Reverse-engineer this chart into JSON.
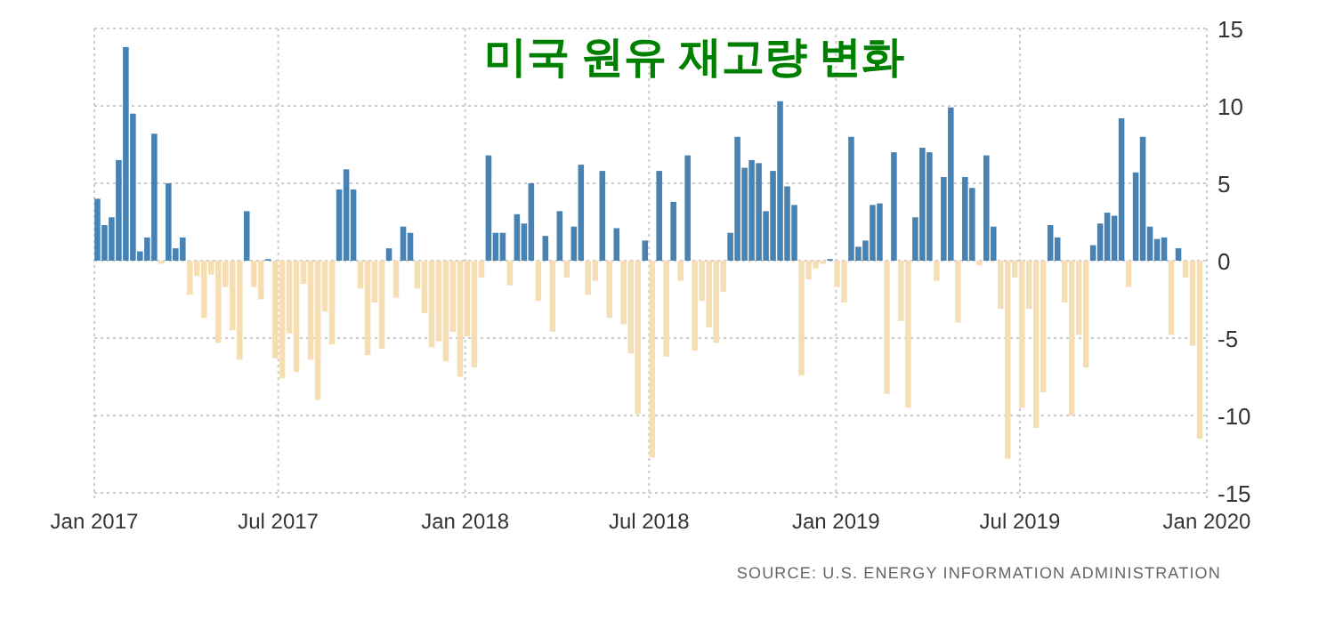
{
  "chart_data": {
    "type": "bar",
    "title": "미국 원유 재고량 변화",
    "annotations": [
      "SOURCE: U.S. ENERGY INFORMATION ADMINISTRATION"
    ],
    "x": [
      "2017-01-04",
      "2017-01-11",
      "2017-01-18",
      "2017-01-25",
      "2017-02-01",
      "2017-02-08",
      "2017-02-15",
      "2017-02-22",
      "2017-03-01",
      "2017-03-08",
      "2017-03-15",
      "2017-03-22",
      "2017-03-29",
      "2017-04-05",
      "2017-04-12",
      "2017-04-19",
      "2017-04-26",
      "2017-05-03",
      "2017-05-10",
      "2017-05-17",
      "2017-05-24",
      "2017-05-31",
      "2017-06-07",
      "2017-06-14",
      "2017-06-21",
      "2017-06-28",
      "2017-07-05",
      "2017-07-12",
      "2017-07-19",
      "2017-07-26",
      "2017-08-02",
      "2017-08-09",
      "2017-08-16",
      "2017-08-23",
      "2017-08-30",
      "2017-09-06",
      "2017-09-13",
      "2017-09-20",
      "2017-09-27",
      "2017-10-04",
      "2017-10-11",
      "2017-10-18",
      "2017-10-25",
      "2017-11-01",
      "2017-11-08",
      "2017-11-15",
      "2017-11-22",
      "2017-11-29",
      "2017-12-06",
      "2017-12-13",
      "2017-12-20",
      "2017-12-27",
      "2018-01-03",
      "2018-01-10",
      "2018-01-17",
      "2018-01-24",
      "2018-01-31",
      "2018-02-07",
      "2018-02-14",
      "2018-02-21",
      "2018-02-28",
      "2018-03-07",
      "2018-03-14",
      "2018-03-21",
      "2018-03-28",
      "2018-04-04",
      "2018-04-11",
      "2018-04-18",
      "2018-04-25",
      "2018-05-02",
      "2018-05-09",
      "2018-05-16",
      "2018-05-23",
      "2018-05-30",
      "2018-06-06",
      "2018-06-13",
      "2018-06-20",
      "2018-06-27",
      "2018-07-04",
      "2018-07-11",
      "2018-07-18",
      "2018-07-25",
      "2018-08-01",
      "2018-08-08",
      "2018-08-15",
      "2018-08-22",
      "2018-08-29",
      "2018-09-05",
      "2018-09-12",
      "2018-09-19",
      "2018-09-26",
      "2018-10-03",
      "2018-10-10",
      "2018-10-17",
      "2018-10-24",
      "2018-10-31",
      "2018-11-07",
      "2018-11-14",
      "2018-11-21",
      "2018-11-28",
      "2018-12-05",
      "2018-12-12",
      "2018-12-19",
      "2018-12-26",
      "2019-01-02",
      "2019-01-09",
      "2019-01-16",
      "2019-01-23",
      "2019-01-30",
      "2019-02-06",
      "2019-02-13",
      "2019-02-20",
      "2019-02-27",
      "2019-03-06",
      "2019-03-13",
      "2019-03-20",
      "2019-03-27",
      "2019-04-03",
      "2019-04-10",
      "2019-04-17",
      "2019-04-24",
      "2019-05-01",
      "2019-05-08",
      "2019-05-15",
      "2019-05-22",
      "2019-05-29",
      "2019-06-05",
      "2019-06-12",
      "2019-06-19",
      "2019-06-26",
      "2019-07-03",
      "2019-07-10",
      "2019-07-17",
      "2019-07-24",
      "2019-07-31",
      "2019-08-07",
      "2019-08-14",
      "2019-08-21",
      "2019-08-28",
      "2019-09-04",
      "2019-09-11",
      "2019-09-18",
      "2019-09-25",
      "2019-10-02",
      "2019-10-09",
      "2019-10-16",
      "2019-10-23",
      "2019-10-30",
      "2019-11-06",
      "2019-11-13",
      "2019-11-20",
      "2019-11-27",
      "2019-12-04",
      "2019-12-11",
      "2019-12-18",
      "2019-12-25"
    ],
    "values": [
      4.0,
      2.3,
      2.8,
      6.5,
      13.8,
      9.5,
      0.6,
      1.5,
      8.2,
      -0.2,
      5.0,
      0.8,
      1.5,
      -2.2,
      -1.0,
      -3.7,
      -0.9,
      -5.3,
      -1.7,
      -4.5,
      -6.4,
      3.2,
      -1.7,
      -2.5,
      0.1,
      -6.3,
      -7.6,
      -4.7,
      -7.2,
      -1.5,
      -6.4,
      -9.0,
      -3.3,
      -5.4,
      4.6,
      5.9,
      4.6,
      -1.8,
      -6.1,
      -2.7,
      -5.7,
      0.8,
      -2.4,
      2.2,
      1.8,
      -1.8,
      -3.4,
      -5.6,
      -5.2,
      -6.5,
      -4.6,
      -7.5,
      -4.9,
      -6.9,
      -1.1,
      6.8,
      1.8,
      1.8,
      -1.6,
      3.0,
      2.4,
      5.0,
      -2.6,
      1.6,
      -4.6,
      3.2,
      -1.1,
      2.2,
      6.2,
      -2.2,
      -1.3,
      5.8,
      -3.7,
      2.1,
      -4.1,
      -6.0,
      -9.9,
      1.3,
      -12.7,
      5.8,
      -6.2,
      3.8,
      -1.3,
      6.8,
      -5.8,
      -2.6,
      -4.3,
      -5.3,
      -2.0,
      1.8,
      8.0,
      6.0,
      6.5,
      6.3,
      3.2,
      5.8,
      10.3,
      4.8,
      3.6,
      -7.4,
      -1.2,
      -0.5,
      -0.2,
      0.1,
      -1.7,
      -2.7,
      8.0,
      0.9,
      1.3,
      3.6,
      3.7,
      -8.6,
      7.0,
      -3.9,
      -9.5,
      2.8,
      7.3,
      7.0,
      -1.3,
      5.4,
      9.9,
      -4.0,
      5.4,
      4.7,
      -0.3,
      6.8,
      2.2,
      -3.1,
      -12.8,
      -1.1,
      -9.5,
      -3.1,
      -10.8,
      -8.5,
      2.3,
      1.5,
      -2.7,
      -10.0,
      -4.8,
      -6.9,
      1.0,
      2.4,
      3.1,
      2.9,
      9.2,
      -1.7,
      5.7,
      8.0,
      2.2,
      1.4,
      1.5,
      -4.8,
      0.8,
      -1.1,
      -5.5,
      -11.5
    ],
    "colors": [
      "#4682b4",
      "#4682b4",
      "#4682b4",
      "#4682b4",
      "#4682b4",
      "#4682b4",
      "#4682b4",
      "#4682b4",
      "#4682b4",
      "#f5deb3",
      "#4682b4",
      "#4682b4",
      "#4682b4",
      "#f5deb3",
      "#f5deb3",
      "#f5deb3",
      "#f5deb3",
      "#f5deb3",
      "#f5deb3",
      "#f5deb3",
      "#f5deb3",
      "#4682b4",
      "#f5deb3",
      "#f5deb3",
      "#4682b4",
      "#f5deb3",
      "#f5deb3",
      "#f5deb3",
      "#f5deb3",
      "#f5deb3",
      "#f5deb3",
      "#f5deb3",
      "#f5deb3",
      "#f5deb3",
      "#4682b4",
      "#4682b4",
      "#4682b4",
      "#f5deb3",
      "#f5deb3",
      "#f5deb3",
      "#f5deb3",
      "#4682b4",
      "#f5deb3",
      "#4682b4",
      "#4682b4",
      "#f5deb3",
      "#f5deb3",
      "#f5deb3",
      "#f5deb3",
      "#f5deb3",
      "#f5deb3",
      "#f5deb3",
      "#f5deb3",
      "#f5deb3",
      "#f5deb3",
      "#4682b4",
      "#4682b4",
      "#4682b4",
      "#f5deb3",
      "#4682b4",
      "#4682b4",
      "#4682b4",
      "#f5deb3",
      "#4682b4",
      "#f5deb3",
      "#4682b4",
      "#f5deb3",
      "#4682b4",
      "#4682b4",
      "#f5deb3",
      "#f5deb3",
      "#4682b4",
      "#f5deb3",
      "#4682b4",
      "#f5deb3",
      "#f5deb3",
      "#f5deb3",
      "#4682b4",
      "#f5deb3",
      "#4682b4",
      "#f5deb3",
      "#4682b4",
      "#f5deb3",
      "#4682b4",
      "#f5deb3",
      "#f5deb3",
      "#f5deb3",
      "#f5deb3",
      "#f5deb3",
      "#4682b4",
      "#4682b4",
      "#4682b4",
      "#4682b4",
      "#4682b4",
      "#4682b4",
      "#4682b4",
      "#4682b4",
      "#4682b4",
      "#4682b4",
      "#f5deb3",
      "#f5deb3",
      "#f5deb3",
      "#f5deb3",
      "#4682b4",
      "#f5deb3",
      "#f5deb3",
      "#4682b4",
      "#4682b4",
      "#4682b4",
      "#4682b4",
      "#4682b4",
      "#f5deb3",
      "#4682b4",
      "#f5deb3",
      "#f5deb3",
      "#4682b4",
      "#4682b4",
      "#4682b4",
      "#f5deb3",
      "#4682b4",
      "#4682b4",
      "#f5deb3",
      "#4682b4",
      "#4682b4",
      "#f5deb3",
      "#4682b4",
      "#4682b4",
      "#f5deb3",
      "#f5deb3",
      "#f5deb3",
      "#f5deb3",
      "#f5deb3",
      "#f5deb3",
      "#f5deb3",
      "#4682b4",
      "#4682b4",
      "#f5deb3",
      "#f5deb3",
      "#f5deb3",
      "#f5deb3",
      "#4682b4",
      "#4682b4",
      "#4682b4",
      "#4682b4",
      "#4682b4",
      "#f5deb3",
      "#4682b4",
      "#4682b4",
      "#4682b4",
      "#4682b4",
      "#4682b4",
      "#f5deb3",
      "#4682b4",
      "#f5deb3",
      "#f5deb3",
      "#f5deb3"
    ],
    "xlim": [
      "2017-01-01",
      "2020-01-01"
    ],
    "xticks": [
      {
        "value": "2017-01-01",
        "label": "Jan 2017"
      },
      {
        "value": "2017-07-01",
        "label": "Jul 2017"
      },
      {
        "value": "2018-01-01",
        "label": "Jan 2018"
      },
      {
        "value": "2018-07-01",
        "label": "Jul 2018"
      },
      {
        "value": "2019-01-01",
        "label": "Jan 2019"
      },
      {
        "value": "2019-07-01",
        "label": "Jul 2019"
      },
      {
        "value": "2020-01-01",
        "label": "Jan 2020"
      }
    ],
    "ylim": [
      -15,
      15
    ],
    "yticks": [
      -15,
      -10,
      -5,
      0,
      5,
      10,
      15
    ],
    "grid": true
  }
}
